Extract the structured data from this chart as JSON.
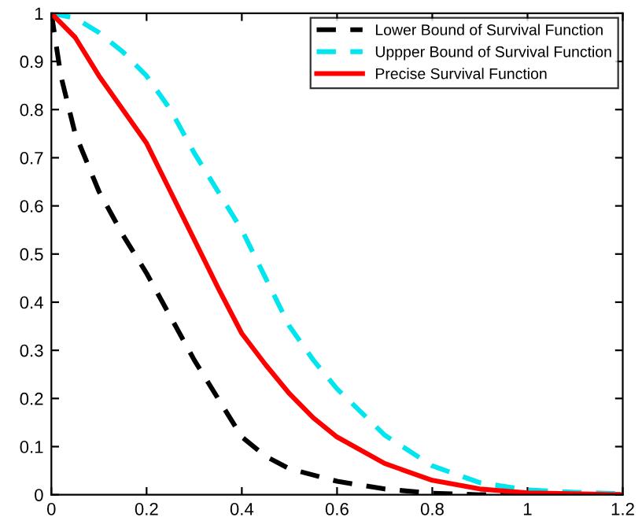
{
  "chart_data": {
    "type": "line",
    "legend": "top right",
    "grid": false,
    "xlim": [
      0,
      1.2
    ],
    "ylim": [
      0,
      1
    ],
    "xticks": [
      0,
      0.2,
      0.4,
      0.6,
      0.8,
      1,
      1.2
    ],
    "yticks": [
      0,
      0.1,
      0.2,
      0.3,
      0.4,
      0.5,
      0.6,
      0.7,
      0.8,
      0.9,
      1
    ],
    "series": [
      {
        "name": "Lower Bound of Survival Function",
        "color": "#000000",
        "line_style": "dashed",
        "x": [
          0,
          0.02,
          0.05,
          0.1,
          0.15,
          0.2,
          0.25,
          0.3,
          0.35,
          0.4,
          0.45,
          0.5,
          0.6,
          0.7,
          0.8,
          0.9,
          1.2
        ],
        "values": [
          1,
          0.87,
          0.75,
          0.63,
          0.54,
          0.46,
          0.37,
          0.28,
          0.2,
          0.12,
          0.08,
          0.054,
          0.028,
          0.012,
          0.003,
          0,
          0
        ]
      },
      {
        "name": "Uppper Bound of Survival Function",
        "color": "#00e5ee",
        "line_style": "dashed",
        "x": [
          0,
          0.05,
          0.1,
          0.15,
          0.2,
          0.25,
          0.3,
          0.35,
          0.4,
          0.45,
          0.5,
          0.55,
          0.6,
          0.7,
          0.8,
          0.9,
          1,
          1.1,
          1.2
        ],
        "values": [
          1,
          0.99,
          0.96,
          0.92,
          0.87,
          0.8,
          0.71,
          0.63,
          0.55,
          0.45,
          0.35,
          0.28,
          0.22,
          0.124,
          0.06,
          0.025,
          0.01,
          0.005,
          0.002
        ]
      },
      {
        "name": "Precise Survival Function",
        "color": "#ff0000",
        "line_style": "solid",
        "x": [
          0,
          0.05,
          0.1,
          0.15,
          0.2,
          0.25,
          0.3,
          0.35,
          0.4,
          0.45,
          0.5,
          0.55,
          0.6,
          0.7,
          0.8,
          0.9,
          1,
          1.2
        ],
        "values": [
          1,
          0.95,
          0.87,
          0.8,
          0.73,
          0.63,
          0.53,
          0.43,
          0.335,
          0.27,
          0.21,
          0.16,
          0.12,
          0.065,
          0.03,
          0.012,
          0.004,
          0
        ]
      }
    ]
  }
}
